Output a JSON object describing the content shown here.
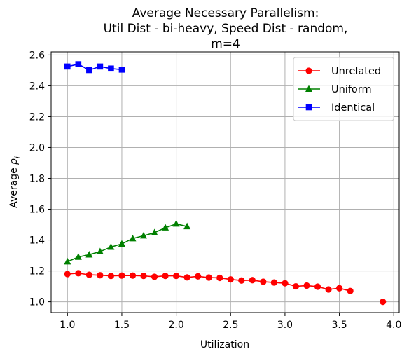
{
  "chart_data": {
    "type": "line",
    "title_lines": [
      "Average Necessary Parallelism:",
      "Util Dist - bi-heavy, Speed Dist - random,",
      "m=4"
    ],
    "xlabel": "Utilization",
    "ylabel": "Average p_i",
    "xlim": [
      0.85,
      4.05
    ],
    "ylim": [
      0.93,
      2.62
    ],
    "xticks": [
      1.0,
      1.5,
      2.0,
      2.5,
      3.0,
      3.5,
      4.0
    ],
    "xtick_labels": [
      "1.0",
      "1.5",
      "2.0",
      "2.5",
      "3.0",
      "3.5",
      "4.0"
    ],
    "yticks": [
      1.0,
      1.2,
      1.4,
      1.6,
      1.8,
      2.0,
      2.2,
      2.4,
      2.6
    ],
    "ytick_labels": [
      "1.0",
      "1.2",
      "1.4",
      "1.6",
      "1.8",
      "2.0",
      "2.2",
      "2.4",
      "2.6"
    ],
    "grid": true,
    "legend_position": "top-right",
    "series": [
      {
        "name": "Unrelated",
        "color": "#ff0000",
        "marker": "circle",
        "segments": [
          {
            "x": [
              1.0,
              1.1,
              1.2,
              1.3,
              1.4,
              1.5,
              1.6,
              1.7,
              1.8,
              1.9,
              2.0,
              2.1,
              2.2,
              2.3,
              2.4,
              2.5,
              2.6,
              2.7,
              2.8,
              2.9,
              3.0,
              3.1,
              3.2,
              3.3,
              3.4,
              3.5,
              3.6
            ],
            "y": [
              1.18,
              1.185,
              1.175,
              1.172,
              1.168,
              1.17,
              1.17,
              1.168,
              1.162,
              1.168,
              1.168,
              1.158,
              1.165,
              1.157,
              1.155,
              1.145,
              1.138,
              1.14,
              1.13,
              1.125,
              1.12,
              1.1,
              1.105,
              1.098,
              1.08,
              1.088,
              1.07
            ]
          },
          {
            "x": [
              3.9
            ],
            "y": [
              1.0
            ]
          }
        ]
      },
      {
        "name": "Uniform",
        "color": "#008000",
        "marker": "triangle",
        "segments": [
          {
            "x": [
              1.0,
              1.1,
              1.2,
              1.3,
              1.4,
              1.5,
              1.6,
              1.7,
              1.8,
              1.9,
              2.0,
              2.1
            ],
            "y": [
              1.26,
              1.29,
              1.305,
              1.325,
              1.355,
              1.375,
              1.41,
              1.428,
              1.448,
              1.48,
              1.505,
              1.488
            ]
          }
        ]
      },
      {
        "name": "Identical",
        "color": "#0000ff",
        "marker": "square",
        "segments": [
          {
            "x": [
              1.0,
              1.1,
              1.2,
              1.3,
              1.4,
              1.5
            ],
            "y": [
              2.525,
              2.54,
              2.502,
              2.525,
              2.512,
              2.505
            ]
          }
        ]
      }
    ]
  }
}
